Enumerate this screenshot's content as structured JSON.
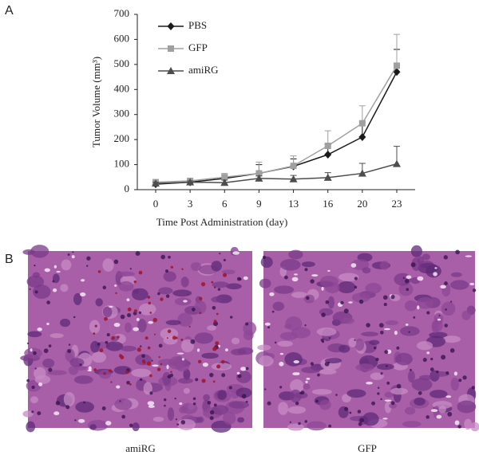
{
  "panel_labels": [
    "A",
    "B"
  ],
  "chart_data": {
    "type": "line",
    "x_label": "Time Post Administration (day)",
    "y_label": "Tumor Volume (mm³)",
    "categories": [
      "0",
      "3",
      "6",
      "9",
      "13",
      "16",
      "20",
      "23"
    ],
    "ylim": [
      0,
      700
    ],
    "yticks": [
      0,
      100,
      200,
      300,
      400,
      500,
      600,
      700
    ],
    "legend": "upper left",
    "series": [
      {
        "name": "PBS",
        "color": "#1a1a1a",
        "marker": "diamond",
        "values": [
          22,
          30,
          45,
          65,
          93,
          140,
          210,
          470
        ],
        "errors": [
          5,
          5,
          15,
          35,
          30,
          40,
          60,
          90
        ]
      },
      {
        "name": "GFP",
        "color": "#a0a0a0",
        "marker": "square",
        "values": [
          30,
          35,
          50,
          65,
          95,
          175,
          265,
          495
        ],
        "errors": [
          8,
          5,
          15,
          45,
          40,
          60,
          70,
          125
        ]
      },
      {
        "name": "amiRG",
        "color": "#4d4d4d",
        "marker": "triangle",
        "values": [
          25,
          30,
          28,
          45,
          42,
          48,
          65,
          103
        ],
        "errors": [
          5,
          5,
          10,
          10,
          15,
          20,
          40,
          70
        ]
      }
    ]
  },
  "images": [
    {
      "caption": "amiRG"
    },
    {
      "caption": "GFP"
    }
  ]
}
